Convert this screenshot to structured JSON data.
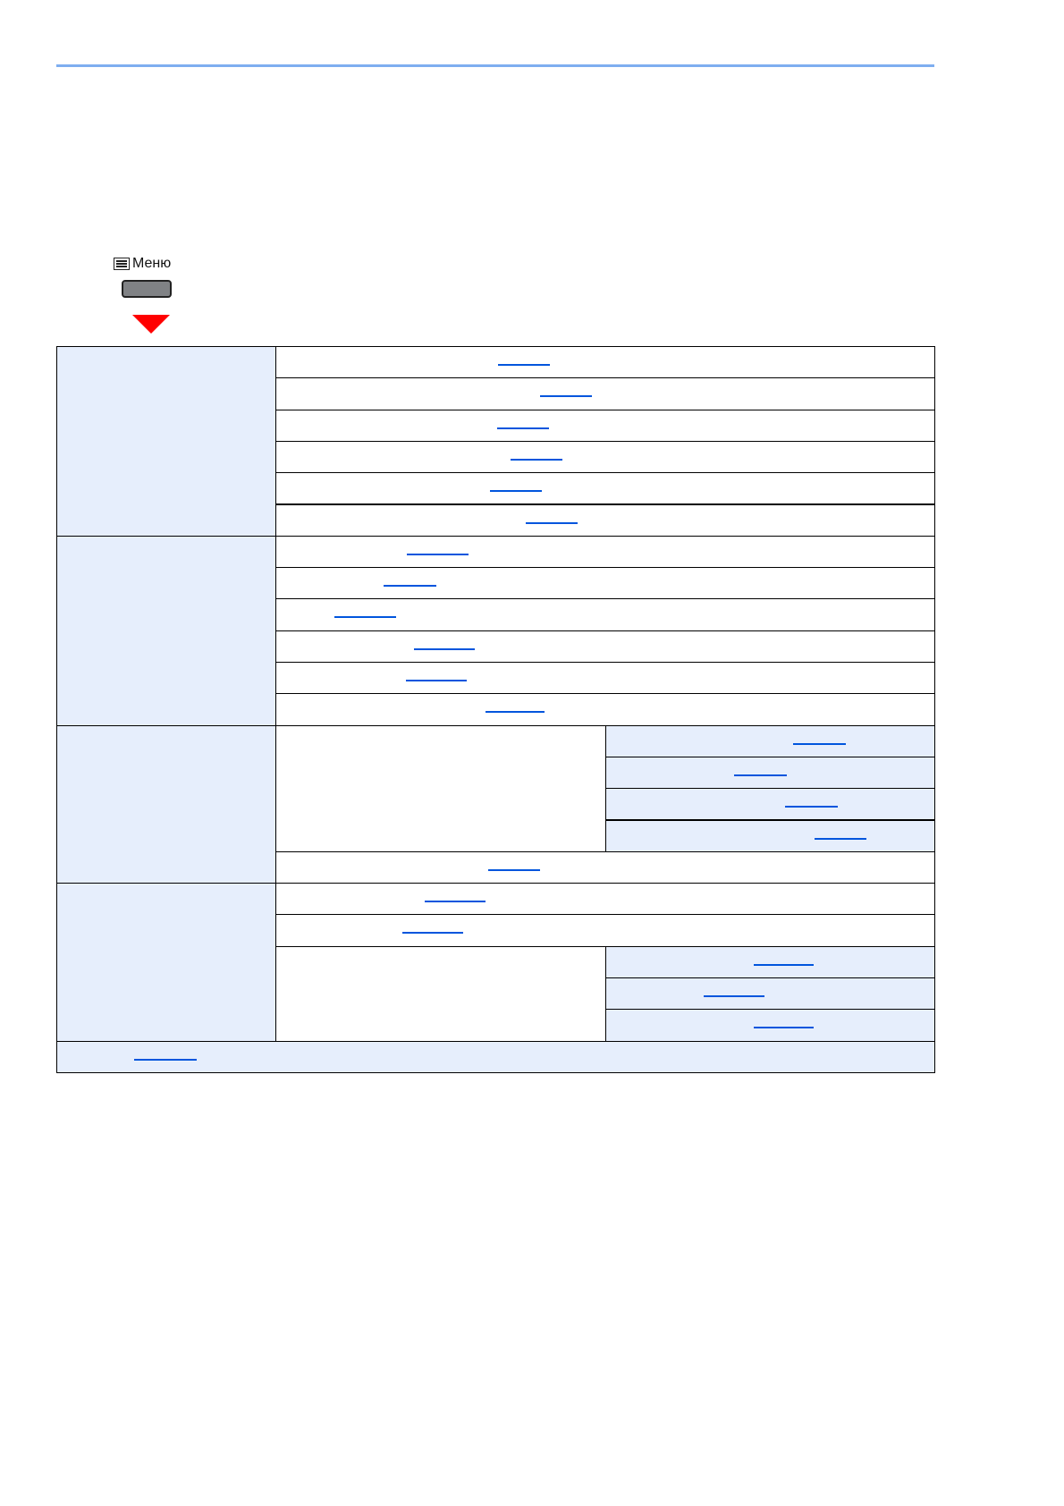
{
  "menu_key": {
    "label": "Меню",
    "icon": "menu-list-icon"
  },
  "colors": {
    "header_rule": "#7eaef0",
    "cell_fill": "#e6eefc",
    "link": "#0055dd",
    "arrow": "#ff0000",
    "key": "#808285"
  },
  "table": {
    "groups": 4,
    "rows": 23
  }
}
